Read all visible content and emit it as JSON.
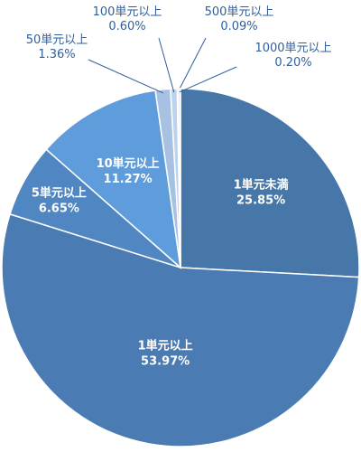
{
  "chart_data": {
    "type": "pie",
    "title": "",
    "slices": [
      {
        "label": "1単元未満",
        "value": 25.85,
        "value_label": "25.85%",
        "color": "#4677a8",
        "label_inside": true
      },
      {
        "label": "1単元以上",
        "value": 53.97,
        "value_label": "53.97%",
        "color": "#4a7cb3",
        "label_inside": true
      },
      {
        "label": "5単元以上",
        "value": 6.65,
        "value_label": "6.65%",
        "color": "#5086c2",
        "label_inside": true
      },
      {
        "label": "10単元以上",
        "value": 11.27,
        "value_label": "11.27%",
        "color": "#5e9cdb",
        "label_inside": true
      },
      {
        "label": "50単元以上",
        "value": 1.36,
        "value_label": "1.36%",
        "color": "#a6c1e2",
        "label_inside": false
      },
      {
        "label": "100単元以上",
        "value": 0.6,
        "value_label": "0.60%",
        "color": "#bdd2ec",
        "label_inside": false
      },
      {
        "label": "500単元以上",
        "value": 0.09,
        "value_label": "0.09%",
        "color": "#c8d9ef",
        "label_inside": false
      },
      {
        "label": "1000単元以上",
        "value": 0.2,
        "value_label": "0.20%",
        "color": "#d6e3f4",
        "label_inside": false
      }
    ]
  }
}
